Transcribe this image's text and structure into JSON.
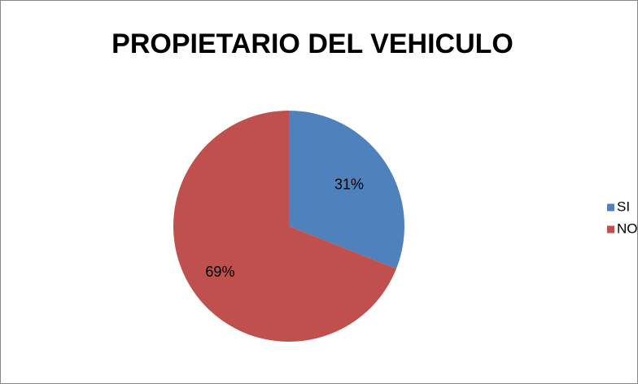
{
  "chart_data": {
    "type": "pie",
    "title": "PROPIETARIO DEL VEHICULO",
    "categories": [
      "SI",
      "NO"
    ],
    "values": [
      31,
      69
    ],
    "value_labels": [
      "31%",
      "69%"
    ],
    "colors": [
      "#4f81bd",
      "#c0504d"
    ],
    "legend": "right"
  }
}
